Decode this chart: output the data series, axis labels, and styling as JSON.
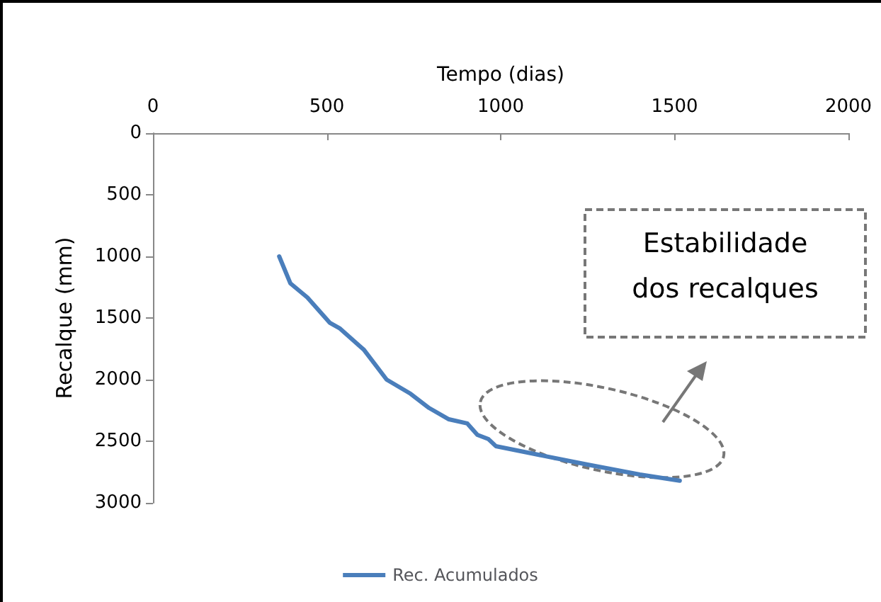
{
  "chart_data": {
    "type": "line",
    "xlabel": "Tempo (dias)",
    "ylabel": "Recalque (mm)",
    "x": [
      363,
      395,
      444,
      509,
      538,
      607,
      672,
      741,
      794,
      851,
      904,
      933,
      965,
      986,
      1100,
      1250,
      1400,
      1515
    ],
    "series": [
      {
        "name": "Rec. Acumulados",
        "color": "#4a7ebb",
        "values": [
          1000,
          1218,
          1333,
          1540,
          1586,
          1759,
          2000,
          2115,
          2230,
          2322,
          2356,
          2448,
          2483,
          2540,
          2605,
          2690,
          2770,
          2820
        ]
      }
    ],
    "xlim": [
      0,
      2000
    ],
    "xticks": [
      0,
      500,
      1000,
      1500,
      2000
    ],
    "ylim": [
      3000,
      0
    ],
    "yticks": [
      0,
      500,
      1000,
      1500,
      2000,
      2500,
      3000
    ],
    "annotations": [
      "Estabilidade dos recalques"
    ],
    "grid": false,
    "legend": "bottom",
    "marker": "none",
    "line_style": "solid"
  }
}
